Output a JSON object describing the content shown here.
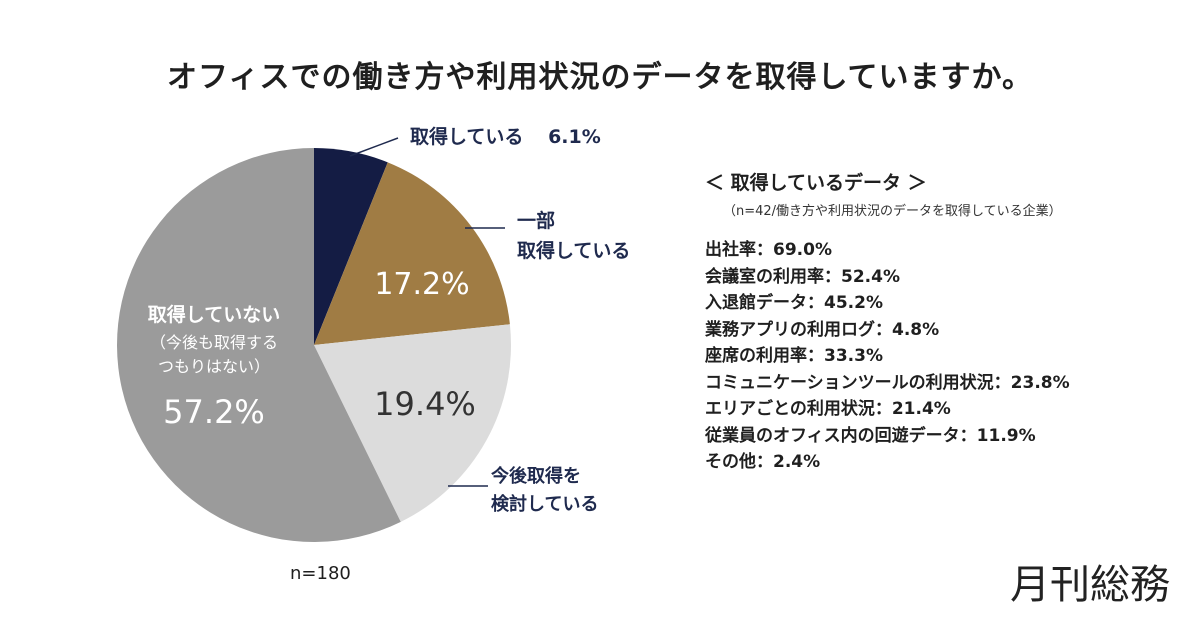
{
  "title": "オフィスでの働き方や利用状況のデータを取得していますか。",
  "chart_data": {
    "type": "pie",
    "title": "オフィスでの働き方や利用状況のデータを取得していますか。",
    "n_label": "n=180",
    "slices": [
      {
        "label": "取得している",
        "value": 6.1,
        "pct_label": "6.1%",
        "color": "#141c44"
      },
      {
        "label": "一部取得している",
        "value": 17.2,
        "pct_label": "17.2%",
        "color": "#a07c44"
      },
      {
        "label": "今後取得を検討している",
        "value": 19.4,
        "pct_label": "19.4%",
        "color": "#dcdcdc"
      },
      {
        "label": "取得していない（今後も取得するつもりはない）",
        "value": 57.2,
        "pct_label": "57.2%",
        "color": "#9b9b9b"
      }
    ]
  },
  "callouts": {
    "acquired": {
      "text": "取得している",
      "pct": "6.1%"
    },
    "partial": {
      "line1": "一部",
      "line2": "取得している"
    },
    "considering": {
      "line1": "今後取得を",
      "line2": "検討している"
    },
    "not_acquired": {
      "line1": "取得していない",
      "line2": "（今後も取得する",
      "line3": "つもりはない）"
    }
  },
  "info": {
    "heading": "＜ 取得しているデータ ＞",
    "sub": "（n=42/働き方や利用状況のデータを取得している企業）",
    "items": [
      "出社率：69.0%",
      "会議室の利用率：52.4%",
      "入退館データ：45.2%",
      "業務アプリの利用ログ：4.8%",
      "座席の利用率：33.3%",
      "コミュニケーションツールの利用状況：23.8%",
      "エリアごとの利用状況：21.4%",
      "従業員のオフィス内の回遊データ：11.9%",
      "その他：2.4%"
    ]
  },
  "brand": "月刊総務"
}
